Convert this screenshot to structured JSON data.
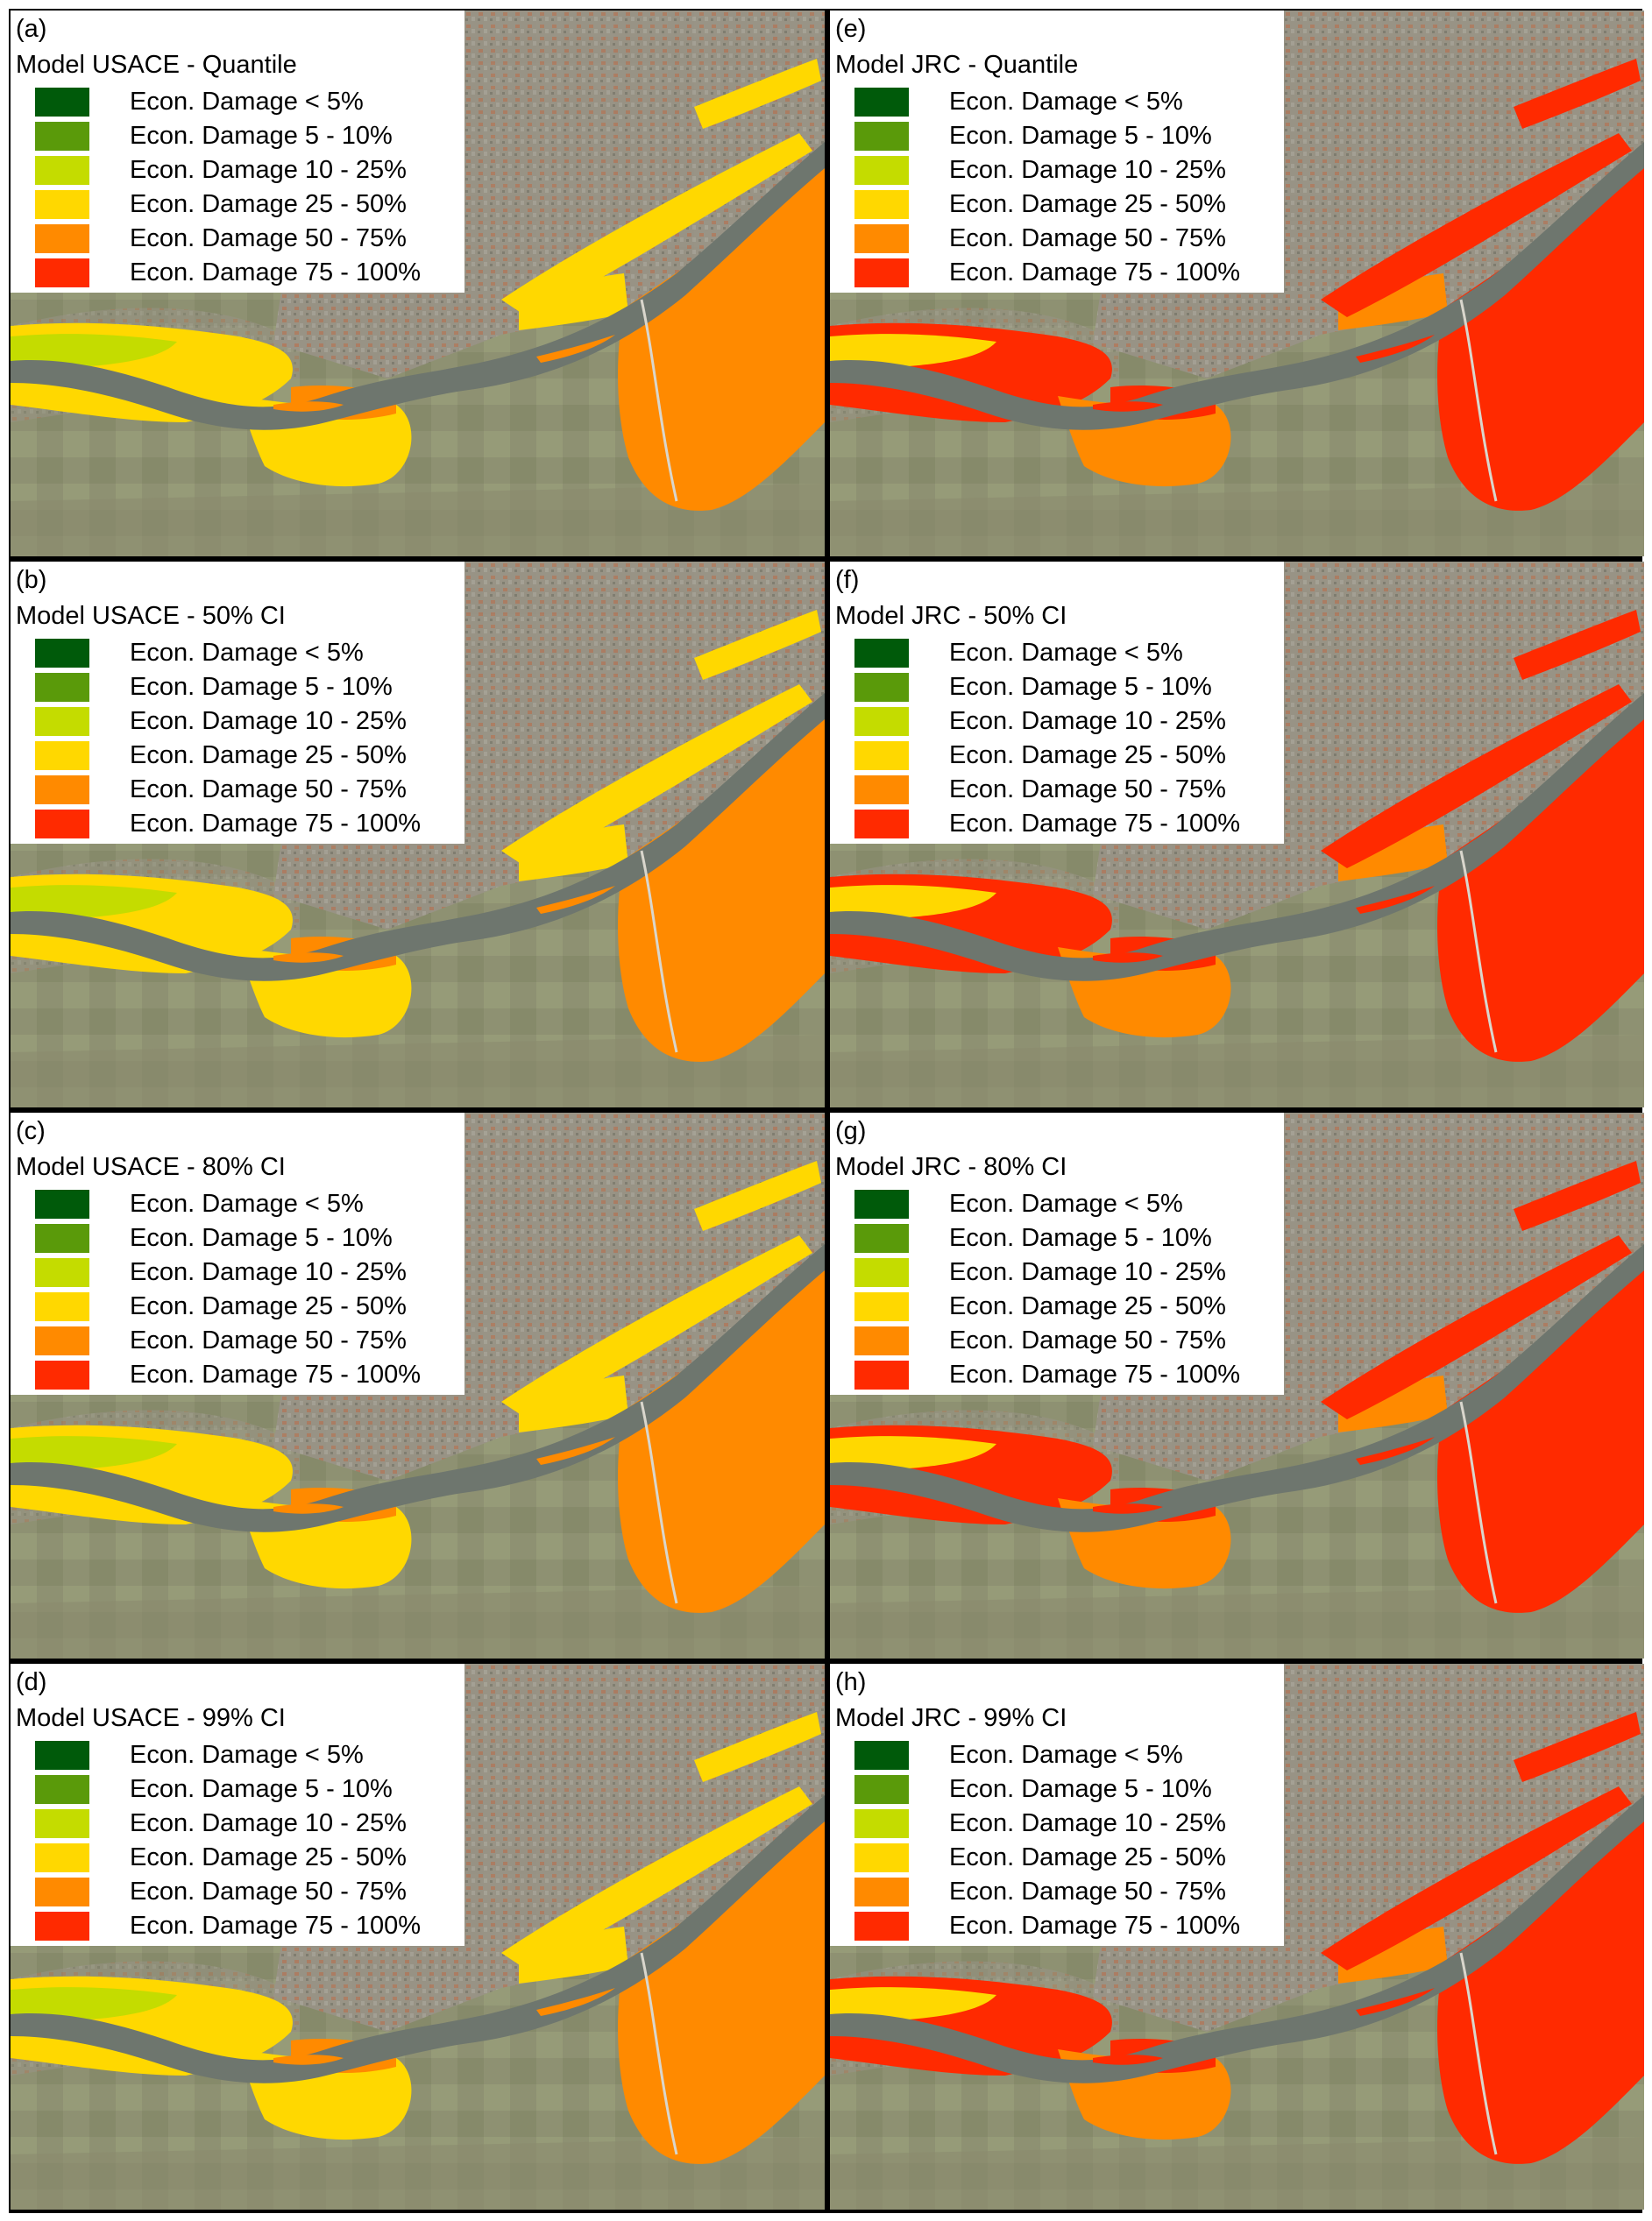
{
  "legend_colors": [
    "#005a0a",
    "#5a9a0a",
    "#c4dc00",
    "#ffd800",
    "#ff8a00",
    "#ff2a00"
  ],
  "legend_labels": [
    "Econ. Damage < 5%",
    "Econ. Damage 5 - 10%",
    "Econ. Damage 10 - 25%",
    "Econ. Damage 25 - 50%",
    "Econ. Damage 50 - 75%",
    "Econ. Damage 75 - 100%"
  ],
  "panels": [
    {
      "letter": "(a)",
      "title": "Model USACE - Quantile",
      "model": "USACE"
    },
    {
      "letter": "(e)",
      "title": "Model JRC - Quantile",
      "model": "JRC"
    },
    {
      "letter": "(b)",
      "title": "Model USACE - 50% CI",
      "model": "USACE"
    },
    {
      "letter": "(f)",
      "title": "Model JRC - 50% CI",
      "model": "JRC"
    },
    {
      "letter": "(c)",
      "title": "Model USACE - 80% CI",
      "model": "USACE"
    },
    {
      "letter": "(g)",
      "title": "Model JRC - 80% CI",
      "model": "JRC"
    },
    {
      "letter": "(d)",
      "title": "Model USACE - 99% CI",
      "model": "USACE"
    },
    {
      "letter": "(h)",
      "title": "Model JRC - 99% CI",
      "model": "JRC"
    }
  ]
}
